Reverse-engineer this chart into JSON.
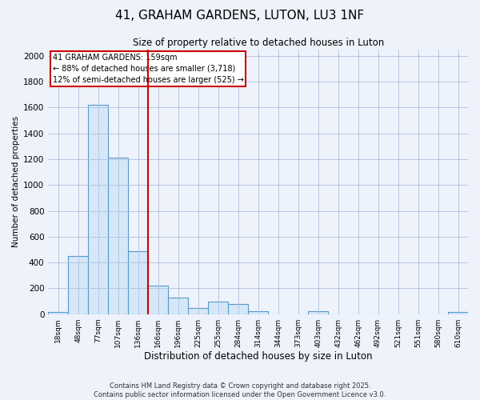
{
  "title_line1": "41, GRAHAM GARDENS, LUTON, LU3 1NF",
  "title_line2": "Size of property relative to detached houses in Luton",
  "xlabel": "Distribution of detached houses by size in Luton",
  "ylabel": "Number of detached properties",
  "categories": [
    "18sqm",
    "48sqm",
    "77sqm",
    "107sqm",
    "136sqm",
    "166sqm",
    "196sqm",
    "225sqm",
    "255sqm",
    "284sqm",
    "314sqm",
    "344sqm",
    "373sqm",
    "403sqm",
    "432sqm",
    "462sqm",
    "492sqm",
    "521sqm",
    "551sqm",
    "580sqm",
    "610sqm"
  ],
  "values": [
    18,
    450,
    1620,
    1210,
    490,
    220,
    130,
    50,
    100,
    80,
    22,
    0,
    0,
    22,
    0,
    0,
    0,
    0,
    0,
    0,
    18
  ],
  "bar_color": "#d6e8f7",
  "bar_edge_color": "#5599cc",
  "red_line_index": 4.5,
  "annotation_lines": [
    "41 GRAHAM GARDENS: 159sqm",
    "← 88% of detached houses are smaller (3,718)",
    "12% of semi-detached houses are larger (525) →"
  ],
  "ylim": [
    0,
    2050
  ],
  "yticks": [
    0,
    200,
    400,
    600,
    800,
    1000,
    1200,
    1400,
    1600,
    1800,
    2000
  ],
  "red_line_color": "#cc0000",
  "footer_line1": "Contains HM Land Registry data © Crown copyright and database right 2025.",
  "footer_line2": "Contains public sector information licensed under the Open Government Licence v3.0.",
  "background_color": "#eef2fb",
  "plot_bg_color": "#eef2fb",
  "grid_color": "#b0bedd"
}
